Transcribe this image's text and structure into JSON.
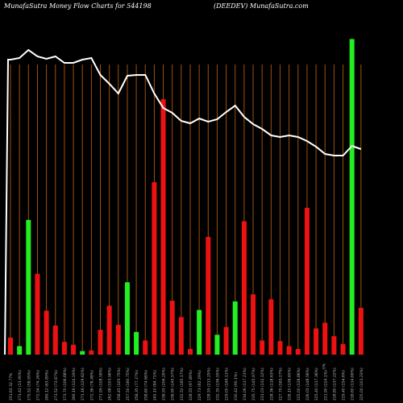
{
  "header": {
    "left": "MunafaSutra  Money Flow  Charts for 544198",
    "right": "(DEEDEV) MunafaSutra.com"
  },
  "colors": {
    "background": "#000000",
    "up": "#22ee22",
    "down": "#ee1111",
    "grid": "#a05010",
    "line": "#ffffff",
    "label": "#bbbbbb"
  },
  "chart_data": {
    "type": "bar",
    "line_label": "price",
    "bars": [
      {
        "label": "251.63 32.77%",
        "value": 24,
        "dir": "down"
      },
      {
        "label": "273.42 (13.90%)",
        "value": 12,
        "dir": "up"
      },
      {
        "label": "275.52 (58.95%)",
        "value": 190,
        "dir": "up"
      },
      {
        "label": "272.54 (74.26%)",
        "value": 114,
        "dir": "down"
      },
      {
        "label": "269.12 (63.89%)",
        "value": 62,
        "dir": "down"
      },
      {
        "label": "271.52 (73.87%)",
        "value": 41,
        "dir": "down"
      },
      {
        "label": "273.70 (106.68%)",
        "value": 18,
        "dir": "down"
      },
      {
        "label": "269.16 (124.19%)",
        "value": 14,
        "dir": "down"
      },
      {
        "label": "271.16 (129.62%)",
        "value": 5,
        "dir": "up"
      },
      {
        "label": "272.36 (78.48%)",
        "value": 6,
        "dir": "down"
      },
      {
        "label": "271.99 (108.58%)",
        "value": 35,
        "dir": "down"
      },
      {
        "label": "262.98 (103.96%)",
        "value": 69,
        "dir": "down"
      },
      {
        "label": "258.45 (105.75%)",
        "value": 42,
        "dir": "down"
      },
      {
        "label": "257.50 (160.75%)",
        "value": 102,
        "dir": "up"
      },
      {
        "label": "258.35 (77.27%)",
        "value": 32,
        "dir": "up"
      },
      {
        "label": "258.60 (74.66%)",
        "value": 20,
        "dir": "down"
      },
      {
        "label": "245.10 (84.71%)",
        "value": 243,
        "dir": "down"
      },
      {
        "label": "238.55 (206.29%)",
        "value": 360,
        "dir": "down"
      },
      {
        "label": "236.90 (145.57%)",
        "value": 76,
        "dir": "down"
      },
      {
        "label": "232.52 (185.17%)",
        "value": 53,
        "dir": "down"
      },
      {
        "label": "228.55 (97.89%)",
        "value": 8,
        "dir": "down"
      },
      {
        "label": "229.73 (82.29%)",
        "value": 63,
        "dir": "up"
      },
      {
        "label": "228.55 (213.25%)",
        "value": 166,
        "dir": "down"
      },
      {
        "label": "232.35 (136.55%)",
        "value": 28,
        "dir": "up"
      },
      {
        "label": "229.00 (149.11%)",
        "value": 39,
        "dir": "down"
      },
      {
        "label": "230.42 (90.1%)",
        "value": 75,
        "dir": "up"
      },
      {
        "label": "234.06 (117.21%)",
        "value": 188,
        "dir": "down"
      },
      {
        "label": "235.75 (145.97%)",
        "value": 85,
        "dir": "down"
      },
      {
        "label": "231.03 (132.12%)",
        "value": 20,
        "dir": "down"
      },
      {
        "label": "228.36 (118.63%)",
        "value": 78,
        "dir": "down"
      },
      {
        "label": "227.70 (165.07%)",
        "value": 19,
        "dir": "down"
      },
      {
        "label": "226.10 (136.65%)",
        "value": 12,
        "dir": "down"
      },
      {
        "label": "225.00 (128.86%)",
        "value": 8,
        "dir": "down"
      },
      {
        "label": "226.05 (148.56%)",
        "value": 207,
        "dir": "down"
      },
      {
        "label": "225.40 (117.36%)",
        "value": 37,
        "dir": "down"
      },
      {
        "label": "221.90 (224.1%)",
        "value": 45,
        "dir": "down"
      },
      {
        "label": "218.80 (137.22%)",
        "value": 26,
        "dir": "down"
      },
      {
        "label": "219.40 (154.6%)",
        "value": 15,
        "dir": "down"
      },
      {
        "label": "218.60 (114.69%)",
        "value": 445,
        "dir": "up"
      },
      {
        "label": "225.00 (103.23%)",
        "value": 66,
        "dir": "down"
      }
    ],
    "line": [
      366,
      368,
      378,
      370,
      367,
      370,
      362,
      362,
      366,
      368,
      347,
      336,
      324,
      346,
      347,
      347,
      324,
      306,
      300,
      290,
      287,
      293,
      289,
      292,
      301,
      309,
      295,
      286,
      280,
      272,
      270,
      272,
      270,
      265,
      258,
      249,
      247,
      247,
      259,
      255
    ],
    "extra_label": "0%"
  }
}
